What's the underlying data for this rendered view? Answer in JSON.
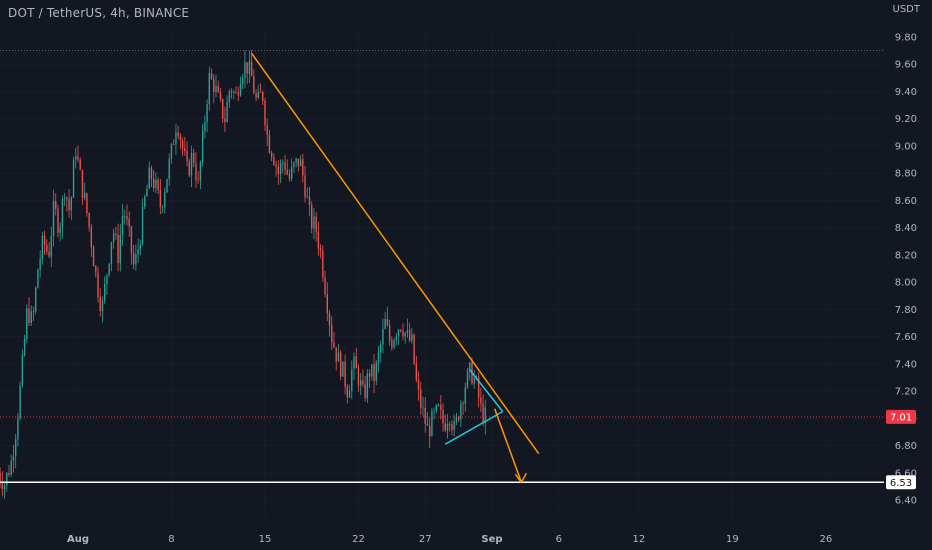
{
  "header": {
    "title": "DOT / TetherUS, 4h, BINANCE",
    "unit": "USDT"
  },
  "colors": {
    "background": "#131722",
    "up": "#26a69a",
    "down": "#ef5350",
    "trendline": "#ff9800",
    "support_line": "#ffffff",
    "channel_line": "#26c6da",
    "price_line": "#f23645",
    "grid": "#2a2e39"
  },
  "chart_data": {
    "type": "candlestick",
    "symbol": "DOT / TetherUS",
    "interval": "4h",
    "exchange": "BINANCE",
    "y_axis": {
      "ticks": [
        6.4,
        6.6,
        6.8,
        7.0,
        7.2,
        7.4,
        7.6,
        7.8,
        8.0,
        8.2,
        8.4,
        8.6,
        8.8,
        9.0,
        9.2,
        9.4,
        9.6,
        9.8
      ],
      "tick_labels": [
        "6.40",
        "6.60",
        "6.80",
        "7.00",
        "7.20",
        "7.40",
        "7.60",
        "7.80",
        "8.00",
        "8.20",
        "8.40",
        "8.60",
        "8.80",
        "9.00",
        "9.20",
        "9.40",
        "9.60",
        "9.80"
      ],
      "ylim": [
        6.33,
        9.91
      ]
    },
    "x_axis": {
      "labels": [
        {
          "text": "Aug",
          "day": 0,
          "bold": true
        },
        {
          "text": "8",
          "day": 7
        },
        {
          "text": "15",
          "day": 14
        },
        {
          "text": "22",
          "day": 21
        },
        {
          "text": "27",
          "day": 26
        },
        {
          "text": "Sep",
          "day": 31,
          "bold": true
        },
        {
          "text": "6",
          "day": 36
        },
        {
          "text": "12",
          "day": 42
        },
        {
          "text": "19",
          "day": 49
        },
        {
          "text": "26",
          "day": 56
        }
      ],
      "xlim": [
        -6.2,
        60
      ]
    },
    "last_price": 7.01,
    "last_price_label": "7.01",
    "support_level": 6.53,
    "support_label": "6.53",
    "high_level": 9.7,
    "price_path": [
      [
        -6.0,
        6.6
      ],
      [
        -5.5,
        6.52
      ],
      [
        -5.0,
        6.68
      ],
      [
        -4.6,
        6.95
      ],
      [
        -4.2,
        7.35
      ],
      [
        -3.8,
        7.8
      ],
      [
        -3.4,
        7.7
      ],
      [
        -3.0,
        8.1
      ],
      [
        -2.6,
        8.3
      ],
      [
        -2.2,
        8.2
      ],
      [
        -1.8,
        8.55
      ],
      [
        -1.4,
        8.4
      ],
      [
        -1.0,
        8.7
      ],
      [
        -0.6,
        8.5
      ],
      [
        -0.2,
        9.0
      ],
      [
        0.2,
        8.75
      ],
      [
        0.6,
        8.55
      ],
      [
        1.0,
        8.3
      ],
      [
        1.4,
        8.0
      ],
      [
        1.8,
        7.8
      ],
      [
        2.2,
        8.1
      ],
      [
        2.6,
        8.4
      ],
      [
        3.0,
        8.2
      ],
      [
        3.4,
        8.55
      ],
      [
        3.8,
        8.35
      ],
      [
        4.2,
        8.1
      ],
      [
        4.6,
        8.3
      ],
      [
        5.0,
        8.6
      ],
      [
        5.4,
        8.8
      ],
      [
        5.8,
        8.7
      ],
      [
        6.2,
        8.55
      ],
      [
        6.6,
        8.75
      ],
      [
        7.0,
        8.95
      ],
      [
        7.4,
        9.2
      ],
      [
        7.8,
        9.0
      ],
      [
        8.2,
        8.8
      ],
      [
        8.6,
        8.95
      ],
      [
        9.0,
        8.7
      ],
      [
        9.4,
        9.1
      ],
      [
        9.8,
        9.5
      ],
      [
        10.2,
        9.45
      ],
      [
        10.6,
        9.3
      ],
      [
        11.0,
        9.2
      ],
      [
        11.4,
        9.45
      ],
      [
        11.8,
        9.35
      ],
      [
        12.2,
        9.55
      ],
      [
        12.6,
        9.6
      ],
      [
        13.0,
        9.5
      ],
      [
        13.4,
        9.3
      ],
      [
        13.8,
        9.4
      ],
      [
        14.2,
        9.05
      ],
      [
        14.6,
        8.95
      ],
      [
        15.0,
        8.8
      ],
      [
        15.4,
        8.9
      ],
      [
        15.8,
        8.75
      ],
      [
        16.2,
        8.85
      ],
      [
        16.6,
        8.9
      ],
      [
        17.0,
        8.7
      ],
      [
        17.4,
        8.45
      ],
      [
        17.8,
        8.4
      ],
      [
        18.2,
        8.2
      ],
      [
        18.6,
        7.9
      ],
      [
        19.0,
        7.6
      ],
      [
        19.4,
        7.45
      ],
      [
        19.8,
        7.35
      ],
      [
        20.2,
        7.2
      ],
      [
        20.6,
        7.4
      ],
      [
        21.0,
        7.3
      ],
      [
        21.4,
        7.15
      ],
      [
        21.8,
        7.35
      ],
      [
        22.2,
        7.3
      ],
      [
        22.6,
        7.5
      ],
      [
        23.0,
        7.7
      ],
      [
        23.4,
        7.55
      ],
      [
        23.8,
        7.65
      ],
      [
        24.2,
        7.7
      ],
      [
        24.6,
        7.6
      ],
      [
        25.0,
        7.55
      ],
      [
        25.4,
        7.2
      ],
      [
        25.8,
        7.05
      ],
      [
        26.2,
        6.9
      ],
      [
        26.6,
        7.0
      ],
      [
        27.0,
        7.05
      ],
      [
        27.4,
        6.95
      ],
      [
        27.8,
        7.05
      ],
      [
        28.2,
        6.9
      ],
      [
        28.6,
        7.1
      ],
      [
        29.0,
        7.25
      ],
      [
        29.4,
        7.35
      ],
      [
        29.8,
        7.25
      ],
      [
        30.2,
        7.05
      ],
      [
        30.5,
        7.01
      ]
    ],
    "annotations": {
      "descending_trendline": {
        "from": [
          13.0,
          9.68
        ],
        "to": [
          34.5,
          6.74
        ],
        "color": "#ff9800"
      },
      "channel_lower": {
        "from": [
          27.5,
          6.81
        ],
        "to": [
          31.8,
          7.05
        ],
        "color": "#26c6da"
      },
      "channel_upper": {
        "from": [
          29.3,
          7.36
        ],
        "to": [
          31.8,
          7.05
        ],
        "color": "#26c6da"
      },
      "projection_arrow": {
        "from": [
          31.2,
          7.07
        ],
        "to": [
          33.2,
          6.53
        ],
        "color": "#ff9800"
      }
    }
  }
}
